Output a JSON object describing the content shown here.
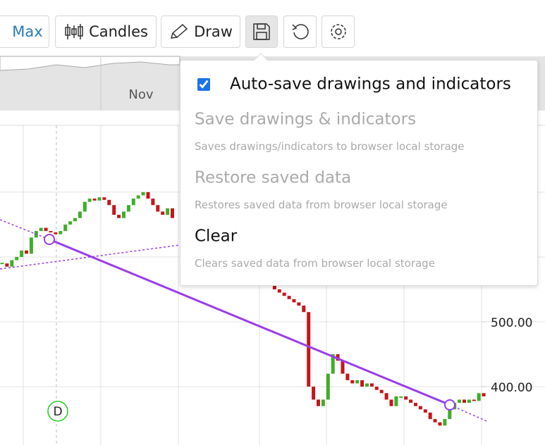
{
  "toolbar": {
    "range": "Max",
    "chart_type": "Candles",
    "draw": "Draw"
  },
  "navigator": {
    "label": "Nov"
  },
  "chart": {
    "ylim": [
      310,
      803
    ],
    "ygrid": [
      700,
      600,
      500,
      400
    ],
    "yticks": [
      {
        "value": 500,
        "label": "500.00"
      },
      {
        "value": 400,
        "label": "400.00"
      }
    ],
    "up_color": "#3fae2a",
    "down_color": "#c4161c",
    "event_marker": "D",
    "close": [
      590,
      585,
      595,
      600,
      610,
      605,
      630,
      640,
      645,
      640,
      638,
      635,
      640,
      650,
      655,
      660,
      670,
      685,
      690,
      687,
      692,
      688,
      680,
      665,
      660,
      670,
      680,
      690,
      695,
      700,
      690,
      680,
      670,
      665,
      675,
      660,
      null,
      null,
      null,
      null,
      null,
      null,
      null,
      null,
      null,
      null,
      null,
      null,
      null,
      null,
      null,
      null,
      null,
      null,
      null,
      560,
      550,
      545,
      540,
      535,
      530,
      525,
      515,
      400,
      380,
      370,
      380,
      420,
      450,
      440,
      420,
      410,
      405,
      410,
      400,
      405,
      400,
      395,
      390,
      380,
      370,
      385,
      385,
      380,
      375,
      370,
      365,
      360,
      350,
      345,
      340,
      350,
      365,
      375,
      380,
      375,
      380,
      378,
      390,
      385
    ]
  },
  "menu": {
    "items": [
      {
        "label": "Auto-save drawings and indicators",
        "checked": true,
        "enabled": true
      },
      {
        "label": "Save drawings & indicators",
        "description": "Saves drawings/indicators to browser local storage",
        "enabled": false
      },
      {
        "label": "Restore saved data",
        "description": "Restores saved data from browser local storage",
        "enabled": false
      },
      {
        "label": "Clear",
        "description": "Clears saved data from browser local storage",
        "enabled": true
      }
    ]
  }
}
